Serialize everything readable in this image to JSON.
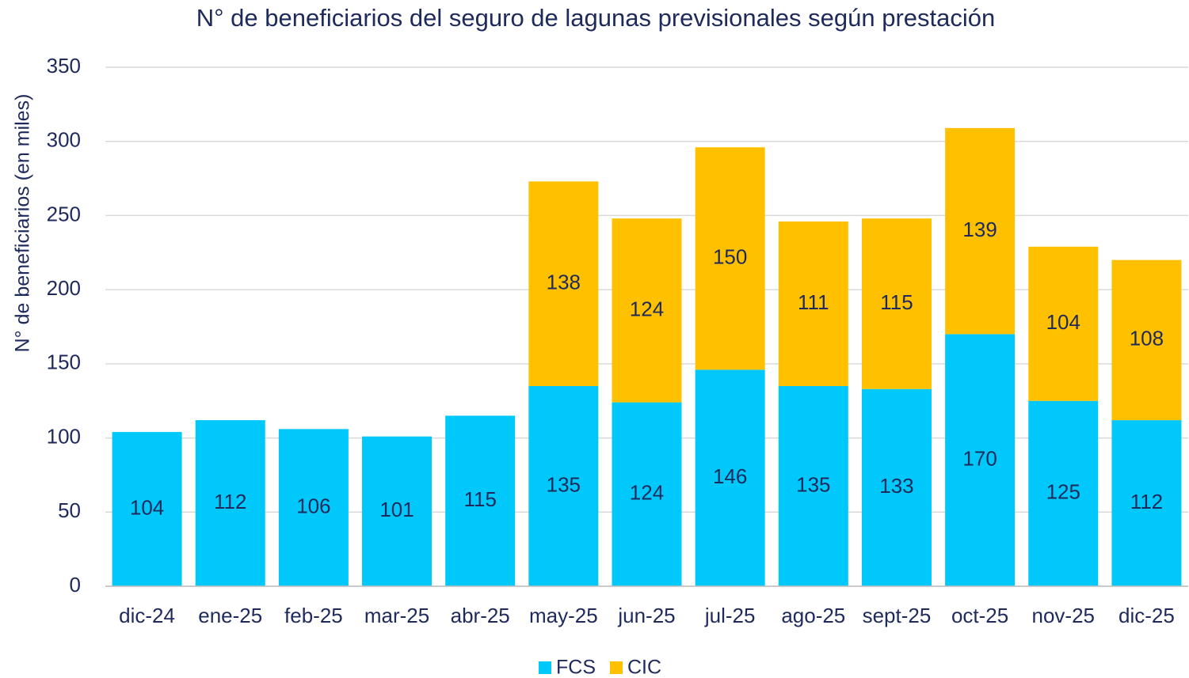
{
  "chart_data": {
    "type": "bar",
    "stacked": true,
    "title": "N° de beneficiarios del seguro de lagunas previsionales según prestación",
    "y_label": "N° de beneficiarios (en miles)",
    "categories": [
      "dic-24",
      "ene-25",
      "feb-25",
      "mar-25",
      "abr-25",
      "may-25",
      "jun-25",
      "jul-25",
      "ago-25",
      "sept-25",
      "oct-25",
      "nov-25",
      "dic-25"
    ],
    "series": [
      {
        "name": "FCS",
        "color": "#00C8FA",
        "values": [
          104,
          112,
          106,
          101,
          115,
          135,
          124,
          146,
          135,
          133,
          170,
          125,
          112
        ]
      },
      {
        "name": "CIC",
        "color": "#FFC000",
        "values": [
          null,
          null,
          null,
          null,
          null,
          138,
          124,
          150,
          111,
          115,
          139,
          104,
          108
        ]
      }
    ],
    "ylim": [
      0,
      350
    ],
    "yticks": [
      0,
      50,
      100,
      150,
      200,
      250,
      300,
      350
    ],
    "grid": true,
    "legend": "bottom"
  }
}
